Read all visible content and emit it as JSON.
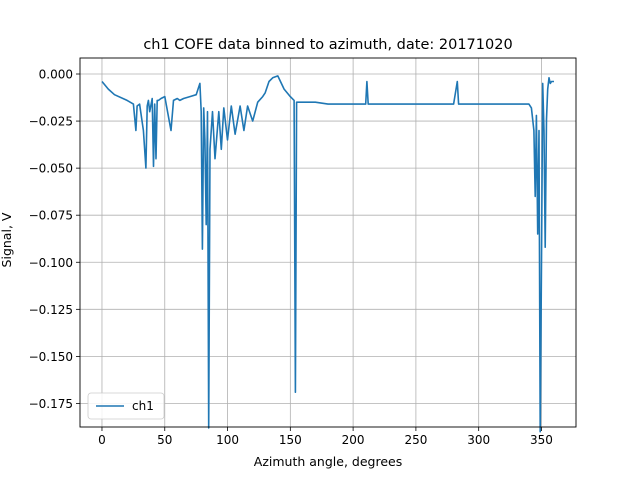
{
  "chart_data": {
    "type": "line",
    "title": "ch1 COFE data binned to azimuth, date: 20171020",
    "xlabel": "Azimuth angle, degrees",
    "ylabel": "Signal, V",
    "xlim": [
      -17.5,
      377.5
    ],
    "ylim": [
      -0.1875,
      0.0085
    ],
    "x_ticks": [
      0,
      50,
      100,
      150,
      200,
      250,
      300,
      350
    ],
    "x_tick_labels": [
      "0",
      "50",
      "100",
      "150",
      "200",
      "250",
      "300",
      "350"
    ],
    "y_ticks": [
      0.0,
      -0.025,
      -0.05,
      -0.075,
      -0.1,
      -0.125,
      -0.15,
      -0.175
    ],
    "y_tick_labels": [
      "0.000",
      "−0.025",
      "−0.050",
      "−0.075",
      "−0.100",
      "−0.125",
      "−0.150",
      "−0.175"
    ],
    "grid": true,
    "legend": {
      "position": "lower-left"
    },
    "colors": {
      "series": "#1f77b4",
      "grid": "#b0b0b0"
    },
    "series": [
      {
        "name": "ch1",
        "x": [
          0,
          5,
          10,
          20,
          25,
          27,
          28,
          30,
          33,
          35,
          36,
          37,
          38,
          40,
          41,
          42,
          43,
          44,
          45,
          47,
          50,
          55,
          57,
          60,
          62,
          65,
          70,
          75,
          78,
          79,
          80,
          81,
          82,
          83,
          84,
          85,
          86,
          88,
          90,
          93,
          95,
          97,
          100,
          103,
          106,
          110,
          113,
          116,
          120,
          124,
          128,
          130,
          133,
          136,
          140,
          145,
          150,
          153,
          154,
          155,
          156,
          160,
          170,
          180,
          190,
          200,
          210,
          211,
          212,
          220,
          240,
          260,
          280,
          283,
          284,
          285,
          300,
          320,
          340,
          342,
          344,
          345,
          346,
          347,
          348,
          349,
          350,
          351,
          352,
          353,
          354,
          355,
          356,
          357,
          358,
          360
        ],
        "y": [
          -0.004,
          -0.008,
          -0.011,
          -0.014,
          -0.016,
          -0.03,
          -0.017,
          -0.016,
          -0.03,
          -0.05,
          -0.017,
          -0.014,
          -0.02,
          -0.013,
          -0.049,
          -0.016,
          -0.045,
          -0.014,
          -0.014,
          -0.013,
          -0.012,
          -0.03,
          -0.014,
          -0.013,
          -0.014,
          -0.013,
          -0.012,
          -0.011,
          -0.005,
          -0.02,
          -0.093,
          -0.018,
          -0.035,
          -0.08,
          -0.02,
          -0.188,
          -0.04,
          -0.02,
          -0.045,
          -0.02,
          -0.04,
          -0.018,
          -0.035,
          -0.017,
          -0.032,
          -0.017,
          -0.03,
          -0.017,
          -0.025,
          -0.015,
          -0.012,
          -0.01,
          -0.004,
          -0.002,
          -0.001,
          -0.008,
          -0.012,
          -0.014,
          -0.169,
          -0.015,
          -0.015,
          -0.015,
          -0.015,
          -0.016,
          -0.016,
          -0.016,
          -0.016,
          -0.004,
          -0.016,
          -0.016,
          -0.016,
          -0.016,
          -0.016,
          -0.004,
          -0.016,
          -0.016,
          -0.016,
          -0.016,
          -0.016,
          -0.018,
          -0.03,
          -0.065,
          -0.022,
          -0.085,
          -0.03,
          -0.19,
          -0.1,
          -0.005,
          -0.03,
          -0.092,
          -0.024,
          -0.008,
          -0.002,
          -0.005,
          -0.004,
          -0.004
        ]
      }
    ]
  }
}
